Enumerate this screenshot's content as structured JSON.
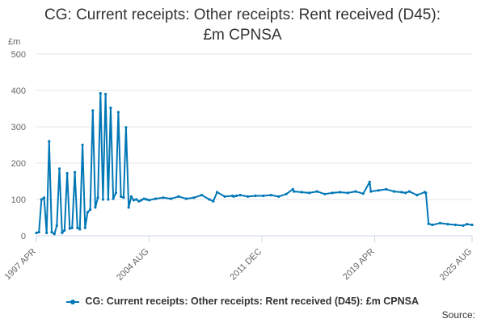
{
  "title_line1": "CG: Current receipts: Other receipts: Rent received (D45):",
  "title_line2": "£m CPNSA",
  "source_label": "Source:",
  "colors": {
    "series": "#0077b6",
    "grid": "#e6e6e6",
    "axis": "#ccd6eb",
    "text": "#333333",
    "tick": "#666666"
  },
  "chart_data": {
    "type": "line",
    "ylabel": "£m",
    "ylim": [
      0,
      500
    ],
    "y_ticks": [
      0,
      100,
      200,
      300,
      400,
      500
    ],
    "xlim": [
      1997.25,
      2025.58
    ],
    "x_ticks": [
      {
        "x": 1997.25,
        "label": "1997 APR"
      },
      {
        "x": 2004.58,
        "label": "2004 AUG"
      },
      {
        "x": 2011.92,
        "label": "2011 DEC"
      },
      {
        "x": 2019.25,
        "label": "2019 APR"
      },
      {
        "x": 2025.58,
        "label": "2025 AUG"
      }
    ],
    "grid": "horizontal",
    "legend": "bottom",
    "series": [
      {
        "name": "CG: Current receipts: Other receipts: Rent received (D45): £m CPNSA",
        "x": [
          1997.25,
          1997.42,
          1997.58,
          1997.75,
          1997.92,
          1998.08,
          1998.25,
          1998.42,
          1998.58,
          1998.75,
          1998.92,
          1999.08,
          1999.25,
          1999.42,
          1999.58,
          1999.75,
          1999.92,
          2000.08,
          2000.25,
          2000.42,
          2000.58,
          2000.75,
          2000.92,
          2001.08,
          2001.25,
          2001.42,
          2001.58,
          2001.75,
          2001.92,
          2002.08,
          2002.25,
          2002.42,
          2002.58,
          2002.75,
          2002.92,
          2003.08,
          2003.25,
          2003.42,
          2003.58,
          2003.75,
          2003.92,
          2004.08,
          2004.25,
          2004.42,
          2004.58,
          2005.0,
          2005.5,
          2006.0,
          2006.5,
          2007.0,
          2007.5,
          2008.0,
          2008.5,
          2008.75,
          2009.0,
          2009.5,
          2010.0,
          2010.08,
          2010.25,
          2010.5,
          2011.0,
          2011.5,
          2012.0,
          2012.5,
          2013.0,
          2013.5,
          2013.92,
          2014.0,
          2014.5,
          2015.0,
          2015.5,
          2016.0,
          2016.5,
          2017.0,
          2017.5,
          2018.0,
          2018.5,
          2018.92,
          2019.0,
          2019.5,
          2020.0,
          2020.5,
          2021.0,
          2021.25,
          2021.5,
          2022.0,
          2022.5,
          2022.58,
          2022.75,
          2023.0,
          2023.5,
          2024.0,
          2024.5,
          2025.0,
          2025.25,
          2025.58
        ],
        "values": [
          8,
          10,
          100,
          105,
          8,
          260,
          10,
          5,
          28,
          185,
          8,
          15,
          172,
          20,
          22,
          175,
          22,
          18,
          250,
          22,
          65,
          72,
          345,
          78,
          105,
          392,
          100,
          390,
          100,
          352,
          102,
          118,
          340,
          108,
          105,
          298,
          78,
          108,
          98,
          100,
          95,
          98,
          102,
          100,
          98,
          102,
          105,
          102,
          108,
          102,
          105,
          112,
          100,
          95,
          120,
          108,
          110,
          108,
          110,
          112,
          108,
          110,
          110,
          112,
          108,
          115,
          128,
          122,
          120,
          118,
          122,
          115,
          118,
          120,
          118,
          122,
          116,
          148,
          122,
          125,
          128,
          122,
          120,
          118,
          122,
          112,
          120,
          118,
          33,
          30,
          35,
          32,
          30,
          28,
          32,
          30
        ]
      }
    ]
  }
}
